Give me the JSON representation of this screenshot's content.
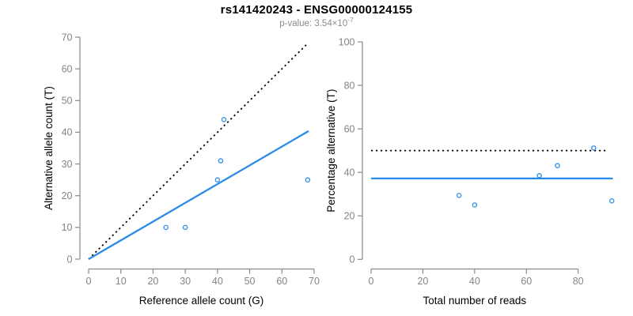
{
  "header": {
    "title": "rs141420243 - ENSG00000124155",
    "pvalue_label": "p-value: 3.54×10",
    "pvalue_exponent": "-7"
  },
  "colors": {
    "accent_blue": "#2a8cea",
    "dotted_black": "#000000",
    "axis_gray": "#898989",
    "tick_label_gray": "#848484",
    "label_black": "#000000"
  },
  "chart_data": [
    {
      "type": "scatter",
      "name": "allele-count-panel",
      "xlabel": "Reference allele count (G)",
      "ylabel": "Alternative allele count (T)",
      "xlim": [
        0,
        70
      ],
      "ylim": [
        0,
        70
      ],
      "xticks": [
        0,
        10,
        20,
        30,
        40,
        50,
        60,
        70
      ],
      "yticks": [
        0,
        10,
        20,
        30,
        40,
        50,
        60,
        70
      ],
      "grid": false,
      "legend": "none",
      "points": [
        [
          24,
          10
        ],
        [
          30,
          10
        ],
        [
          40,
          25
        ],
        [
          41,
          31
        ],
        [
          42,
          44
        ],
        [
          68,
          25
        ]
      ],
      "lines": [
        {
          "name": "expected-50-50-line",
          "style": "dotted",
          "color": "#000000",
          "x": [
            0,
            68
          ],
          "y": [
            0,
            68
          ]
        },
        {
          "name": "fitted-ratio-line",
          "style": "solid",
          "color": "#2a8cea",
          "x": [
            0,
            68.3
          ],
          "y": [
            0,
            40.4
          ]
        }
      ]
    },
    {
      "type": "scatter",
      "name": "percentage-panel",
      "xlabel": "Total number of reads",
      "ylabel": "Percentage alternative (T)",
      "xlim": [
        0,
        95
      ],
      "ylim": [
        0,
        100
      ],
      "xticks": [
        0,
        20,
        40,
        60,
        80
      ],
      "yticks": [
        0,
        20,
        40,
        60,
        80,
        100
      ],
      "grid": false,
      "legend": "none",
      "points": [
        [
          34,
          29.4
        ],
        [
          40,
          25.0
        ],
        [
          65,
          38.5
        ],
        [
          72,
          43.1
        ],
        [
          86,
          51.2
        ],
        [
          93,
          26.9
        ]
      ],
      "lines": [
        {
          "name": "expected-50pct-line",
          "style": "dotted",
          "color": "#000000",
          "x": [
            0,
            91
          ],
          "y": [
            50,
            50
          ]
        },
        {
          "name": "mean-percentage-line",
          "style": "solid",
          "color": "#2a8cea",
          "x": [
            0,
            93.4
          ],
          "y": [
            37.2,
            37.2
          ]
        }
      ]
    }
  ]
}
